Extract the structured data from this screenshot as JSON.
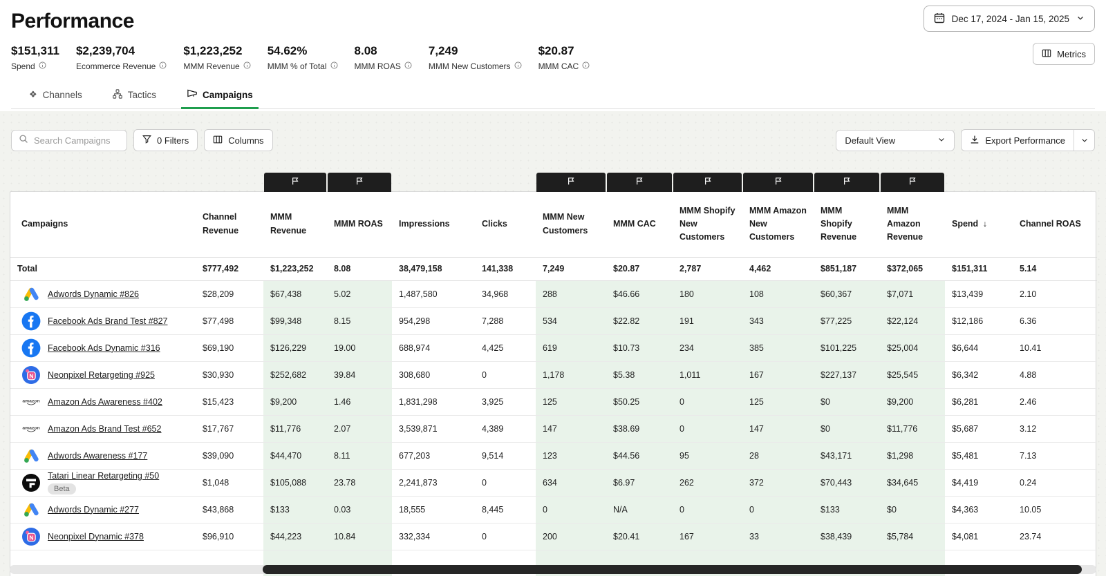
{
  "header": {
    "title": "Performance",
    "date_range": "Dec 17, 2024 - Jan 15, 2025",
    "metrics_label": "Metrics"
  },
  "kpis": [
    {
      "value": "$151,311",
      "label": "Spend"
    },
    {
      "value": "$2,239,704",
      "label": "Ecommerce Revenue"
    },
    {
      "value": "$1,223,252",
      "label": "MMM Revenue"
    },
    {
      "value": "54.62%",
      "label": "MMM % of Total"
    },
    {
      "value": "8.08",
      "label": "MMM ROAS"
    },
    {
      "value": "7,249",
      "label": "MMM New Customers"
    },
    {
      "value": "$20.87",
      "label": "MMM CAC"
    }
  ],
  "tabs": [
    {
      "label": "Channels",
      "icon": "channels-icon",
      "active": false
    },
    {
      "label": "Tactics",
      "icon": "tactics-icon",
      "active": false
    },
    {
      "label": "Campaigns",
      "icon": "campaigns-icon",
      "active": true
    }
  ],
  "toolbar": {
    "search_placeholder": "Search Campaigns",
    "filters_label": "0 Filters",
    "columns_label": "Columns",
    "view_label": "Default View",
    "export_label": "Export Performance"
  },
  "table": {
    "columns": [
      {
        "label": "Campaigns",
        "badge": false,
        "green": false
      },
      {
        "label": "Channel Revenue",
        "badge": false,
        "green": false
      },
      {
        "label": "MMM Revenue",
        "badge": true,
        "green": true
      },
      {
        "label": "MMM ROAS",
        "badge": true,
        "green": true
      },
      {
        "label": "Impressions",
        "badge": false,
        "green": false
      },
      {
        "label": "Clicks",
        "badge": false,
        "green": false
      },
      {
        "label": "MMM New Customers",
        "badge": true,
        "green": true
      },
      {
        "label": "MMM CAC",
        "badge": true,
        "green": true
      },
      {
        "label": "MMM Shopify New Customers",
        "badge": true,
        "green": true
      },
      {
        "label": "MMM Amazon New Customers",
        "badge": true,
        "green": true
      },
      {
        "label": "MMM Shopify Revenue",
        "badge": true,
        "green": true
      },
      {
        "label": "MMM Amazon Revenue",
        "badge": true,
        "green": true
      },
      {
        "label": "Spend",
        "badge": false,
        "green": false,
        "sort": "desc"
      },
      {
        "label": "Channel ROAS",
        "badge": false,
        "green": false
      }
    ],
    "total": {
      "label": "Total",
      "values": [
        "$777,492",
        "$1,223,252",
        "8.08",
        "38,479,158",
        "141,338",
        "7,249",
        "$20.87",
        "2,787",
        "4,462",
        "$851,187",
        "$372,065",
        "$151,311",
        "5.14"
      ]
    },
    "rows": [
      {
        "name": "Adwords Dynamic #826",
        "icon": "google-ads-icon",
        "values": [
          "$28,209",
          "$67,438",
          "5.02",
          "1,487,580",
          "34,968",
          "288",
          "$46.66",
          "180",
          "108",
          "$60,367",
          "$7,071",
          "$13,439",
          "2.10"
        ]
      },
      {
        "name": "Facebook Ads Brand Test #827",
        "icon": "facebook-icon",
        "values": [
          "$77,498",
          "$99,348",
          "8.15",
          "954,298",
          "7,288",
          "534",
          "$22.82",
          "191",
          "343",
          "$77,225",
          "$22,124",
          "$12,186",
          "6.36"
        ]
      },
      {
        "name": "Facebook Ads Dynamic #316",
        "icon": "facebook-icon",
        "values": [
          "$69,190",
          "$126,229",
          "19.00",
          "688,974",
          "4,425",
          "619",
          "$10.73",
          "234",
          "385",
          "$101,225",
          "$25,004",
          "$6,644",
          "10.41"
        ]
      },
      {
        "name": "Neonpixel Retargeting #925",
        "icon": "neonpixel-icon",
        "values": [
          "$30,930",
          "$252,682",
          "39.84",
          "308,680",
          "0",
          "1,178",
          "$5.38",
          "1,011",
          "167",
          "$227,137",
          "$25,545",
          "$6,342",
          "4.88"
        ]
      },
      {
        "name": "Amazon Ads Awareness #402",
        "icon": "amazon-icon",
        "values": [
          "$15,423",
          "$9,200",
          "1.46",
          "1,831,298",
          "3,925",
          "125",
          "$50.25",
          "0",
          "125",
          "$0",
          "$9,200",
          "$6,281",
          "2.46"
        ]
      },
      {
        "name": "Amazon Ads Brand Test #652",
        "icon": "amazon-icon",
        "values": [
          "$17,767",
          "$11,776",
          "2.07",
          "3,539,871",
          "4,389",
          "147",
          "$38.69",
          "0",
          "147",
          "$0",
          "$11,776",
          "$5,687",
          "3.12"
        ]
      },
      {
        "name": "Adwords Awareness #177",
        "icon": "google-ads-icon",
        "values": [
          "$39,090",
          "$44,470",
          "8.11",
          "677,203",
          "9,514",
          "123",
          "$44.56",
          "95",
          "28",
          "$43,171",
          "$1,298",
          "$5,481",
          "7.13"
        ]
      },
      {
        "name": "Tatari Linear Retargeting #50",
        "icon": "tatari-icon",
        "beta_label": "Beta",
        "values": [
          "$1,048",
          "$105,088",
          "23.78",
          "2,241,873",
          "0",
          "634",
          "$6.97",
          "262",
          "372",
          "$70,443",
          "$34,645",
          "$4,419",
          "0.24"
        ]
      },
      {
        "name": "Adwords Dynamic #277",
        "icon": "google-ads-icon",
        "values": [
          "$43,868",
          "$133",
          "0.03",
          "18,555",
          "8,445",
          "0",
          "N/A",
          "0",
          "0",
          "$133",
          "$0",
          "$4,363",
          "10.05"
        ]
      },
      {
        "name": "Neonpixel Dynamic #378",
        "icon": "neonpixel-icon",
        "values": [
          "$96,910",
          "$44,223",
          "10.84",
          "332,334",
          "0",
          "200",
          "$20.41",
          "167",
          "33",
          "$38,439",
          "$5,784",
          "$4,081",
          "23.74"
        ]
      }
    ]
  },
  "colors": {
    "accent_green": "#1f9e4e",
    "mmm_cell_green": "#e9f3ea",
    "mmm_badge_black": "#1e1e1e"
  }
}
